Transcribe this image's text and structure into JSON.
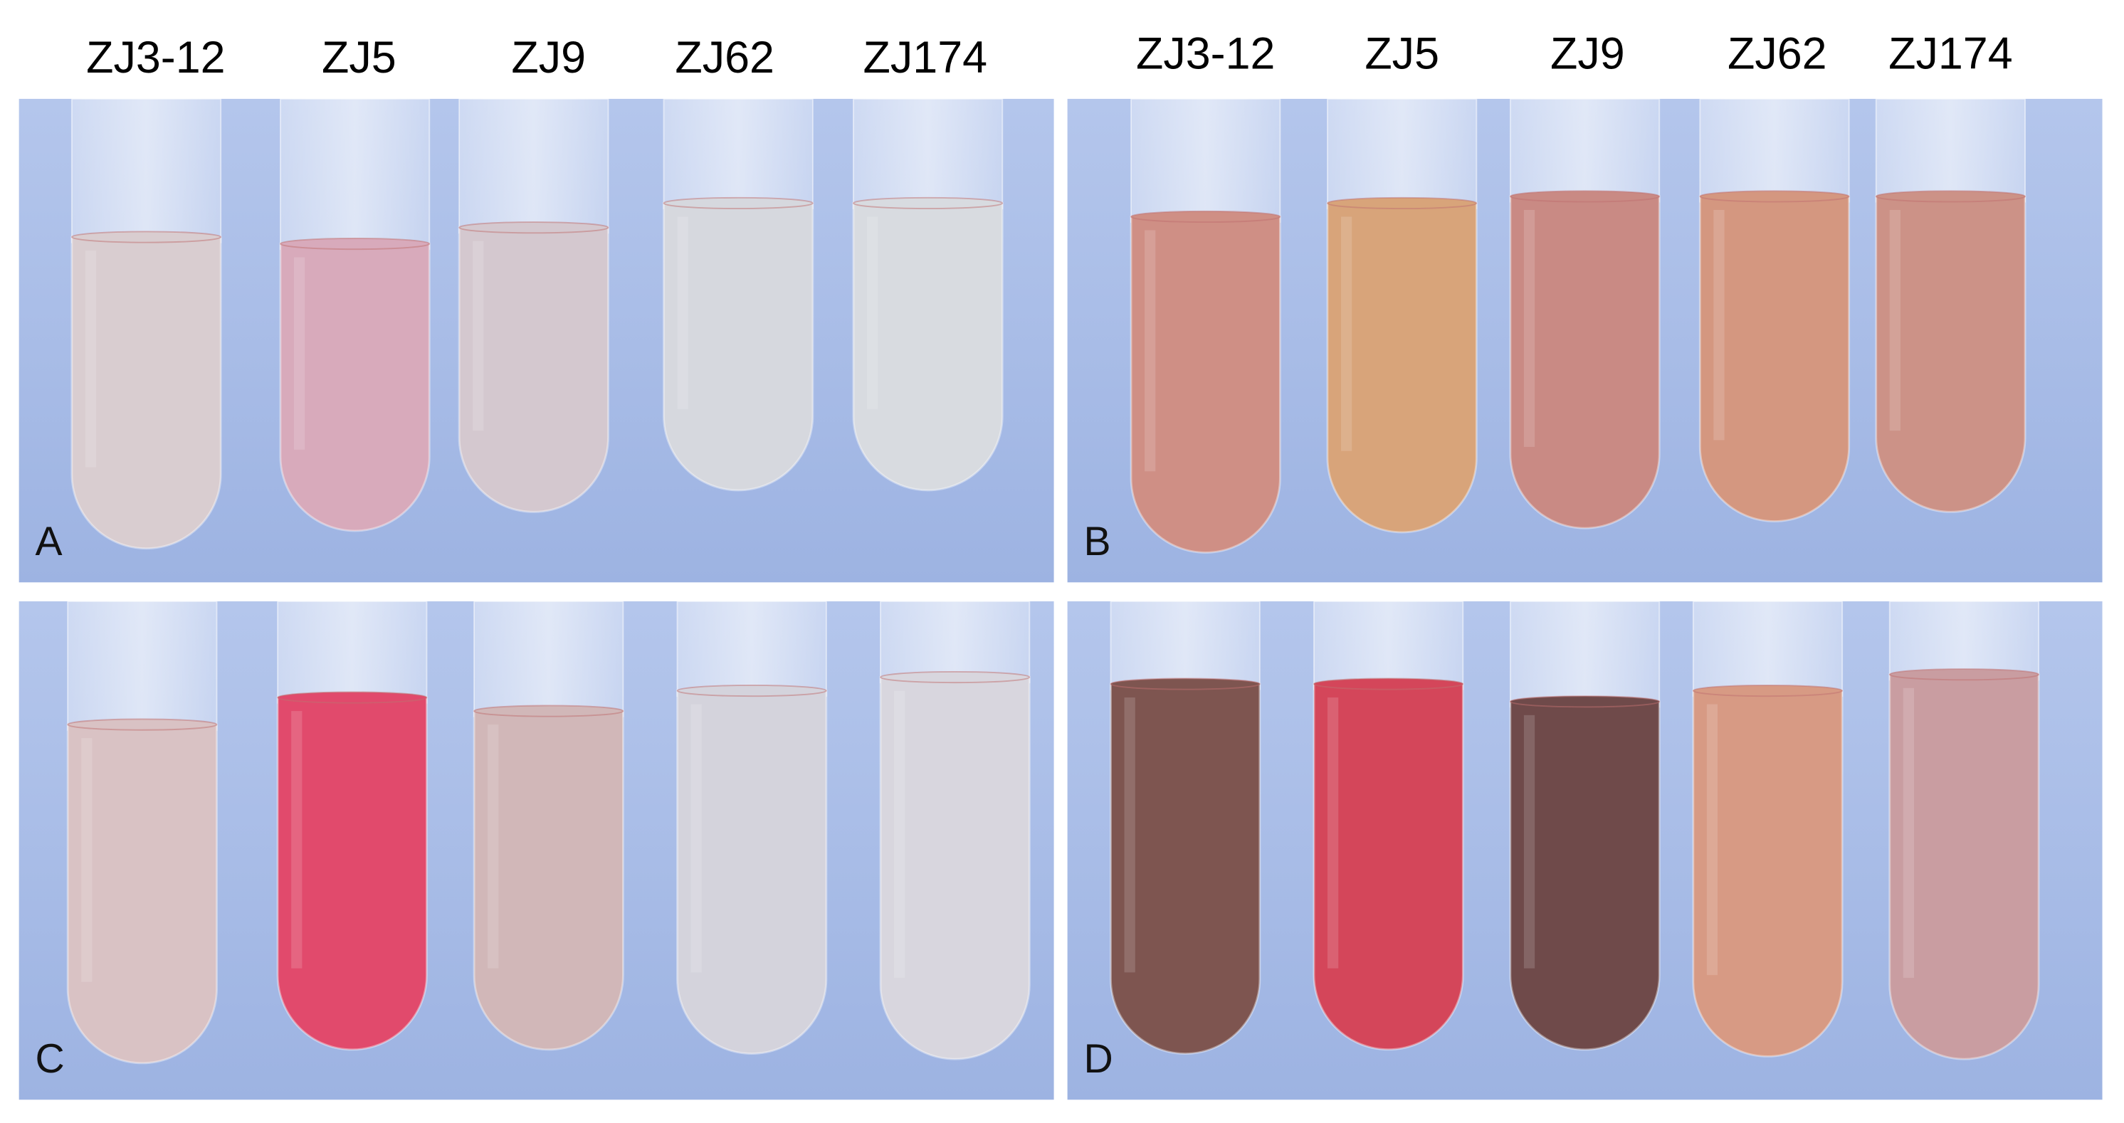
{
  "header_left": [
    "ZJ3-12",
    "ZJ5",
    "ZJ9",
    "ZJ62",
    "ZJ174"
  ],
  "header_right": [
    "ZJ3-12",
    "ZJ5",
    "ZJ9",
    "ZJ62",
    "ZJ174"
  ],
  "panels": [
    {
      "label": "A",
      "colors": [
        "#d9cdd0",
        "#d8aabb",
        "#d4c8cf",
        "#d6d8de",
        "#d8dbe0"
      ]
    },
    {
      "label": "B",
      "colors": [
        "#cf8f85",
        "#d8a47a",
        "#c98a84",
        "#d49780",
        "#cc9287"
      ]
    },
    {
      "label": "C",
      "colors": [
        "#d9c2c4",
        "#e14a6c",
        "#d1b7b8",
        "#d4d3dc",
        "#d8d6de"
      ]
    },
    {
      "label": "D",
      "colors": [
        "#7e5550",
        "#d4465a",
        "#6f4a4a",
        "#d79a84",
        "#c99da1"
      ]
    }
  ]
}
